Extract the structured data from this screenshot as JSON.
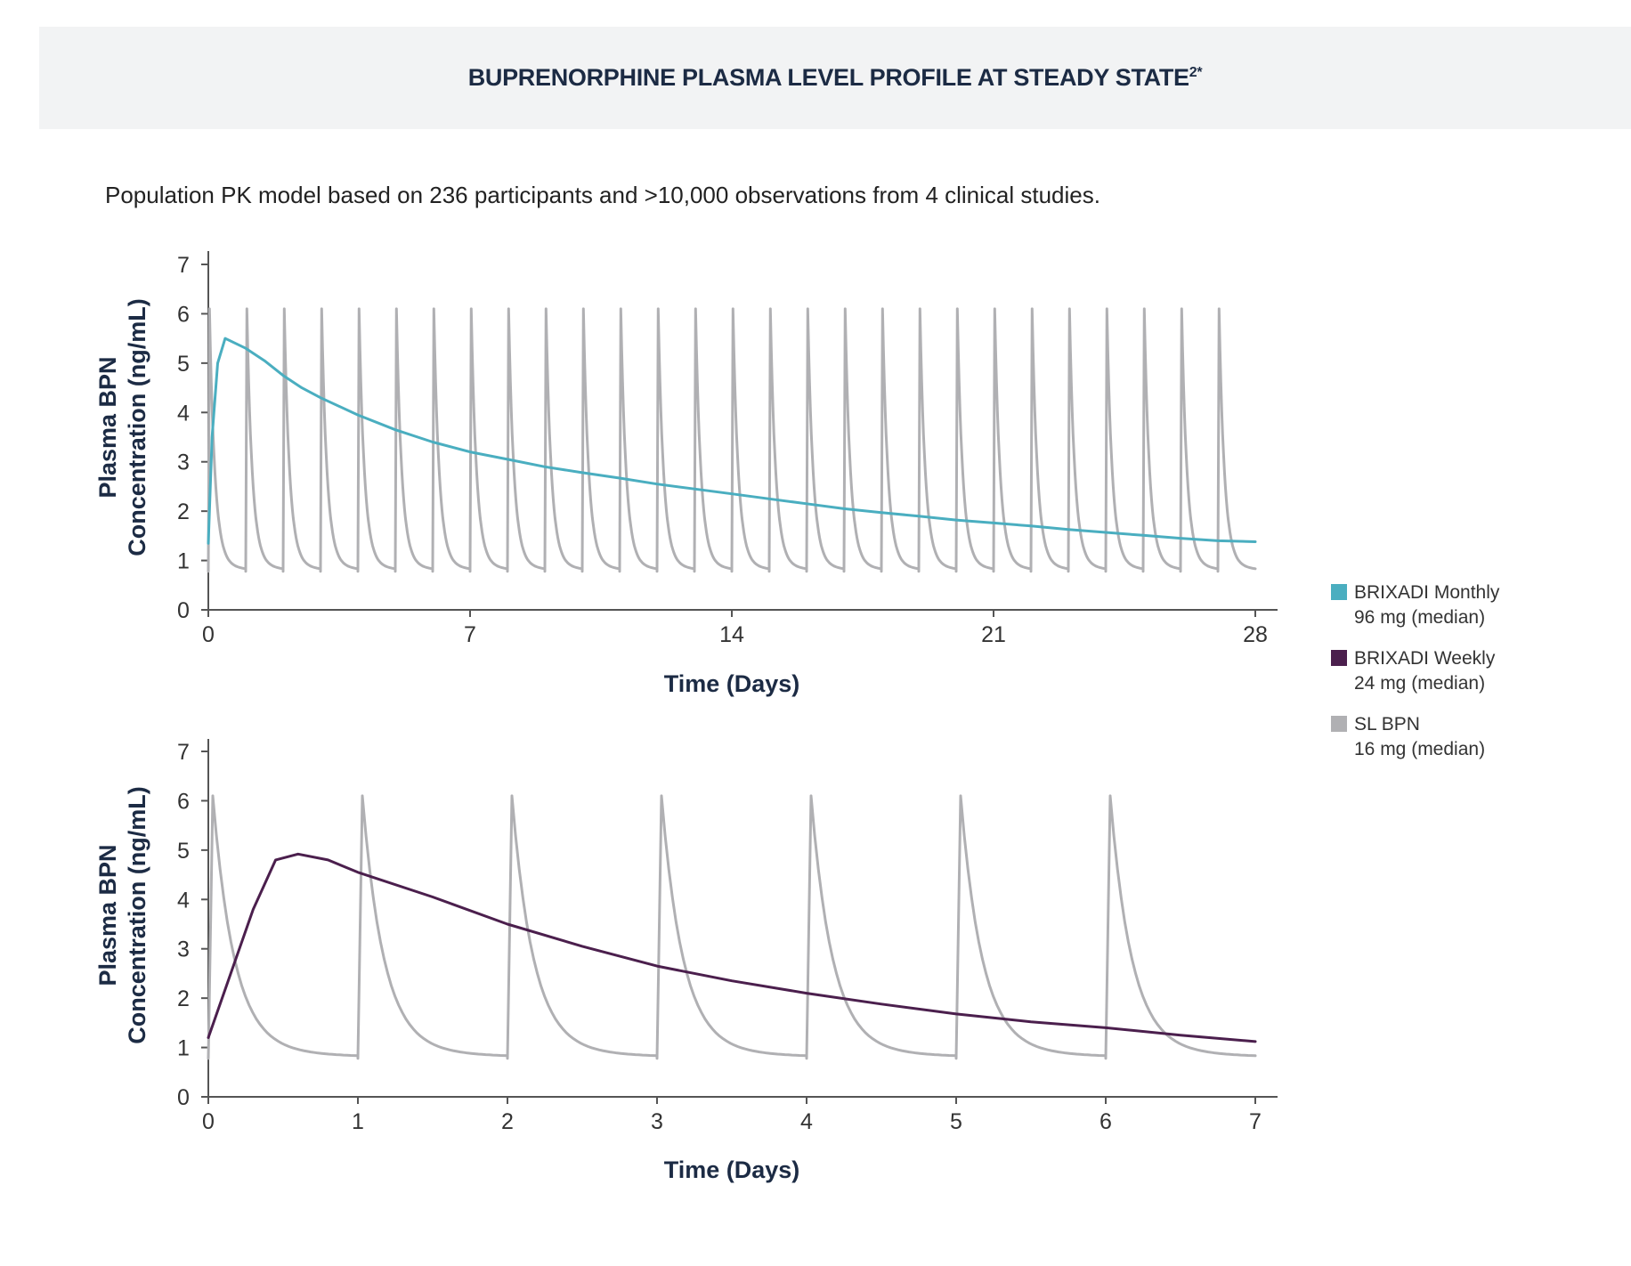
{
  "title": "BUPRENORPHINE PLASMA LEVEL PROFILE AT STEADY STATE",
  "title_sup": "2*",
  "subtitle": "Population PK model based on 236 participants and >10,000 observations from 4 clinical studies.",
  "colors": {
    "monthly": "#4aaec0",
    "weekly": "#4b1f4d",
    "sl": "#b0b0b3",
    "axis": "#555555"
  },
  "legend": [
    {
      "name": "BRIXADI Monthly",
      "sub": "96 mg (median)",
      "color": "#4aaec0"
    },
    {
      "name": "BRIXADI Weekly",
      "sub": "24 mg (median)",
      "color": "#4b1f4d"
    },
    {
      "name": "SL BPN",
      "sub": "16 mg (median)",
      "color": "#b0b0b3"
    }
  ],
  "chart_data": [
    {
      "type": "line",
      "title": "",
      "xlabel": "Time (Days)",
      "ylabel": [
        "Plasma BPN",
        "Concentration (ng/mL)"
      ],
      "xlim": [
        0,
        28
      ],
      "ylim": [
        0,
        7
      ],
      "xticks": [
        0,
        7,
        14,
        21,
        28
      ],
      "yticks": [
        0,
        1,
        2,
        3,
        4,
        5,
        6,
        7
      ],
      "series": [
        {
          "name": "BRIXADI Monthly 96 mg (median)",
          "color": "#4aaec0",
          "x": [
            0,
            0.1,
            0.25,
            0.45,
            1,
            1.5,
            2,
            2.5,
            3,
            4,
            5,
            6,
            7,
            8,
            9,
            10,
            11,
            12,
            13,
            14,
            15,
            16,
            17,
            18,
            19,
            20,
            21,
            22,
            23,
            24,
            25,
            26,
            27,
            28
          ],
          "y": [
            1.35,
            3.5,
            5.0,
            5.5,
            5.3,
            5.05,
            4.75,
            4.5,
            4.3,
            3.95,
            3.65,
            3.4,
            3.2,
            3.05,
            2.9,
            2.78,
            2.67,
            2.55,
            2.45,
            2.35,
            2.25,
            2.15,
            2.05,
            1.97,
            1.9,
            1.82,
            1.76,
            1.7,
            1.63,
            1.57,
            1.51,
            1.45,
            1.4,
            1.38
          ]
        },
        {
          "name": "SL BPN 16 mg (median)",
          "color": "#b0b0b3",
          "pattern": "daily-dose",
          "period_days": 1,
          "n_doses": 28,
          "trough": 0.78,
          "peak": 6.1,
          "decay_rate": 7.0,
          "x": [
            0,
            0.03,
            0.1,
            0.2,
            0.3,
            0.5,
            0.7,
            0.9,
            1.0
          ],
          "y": [
            0.78,
            6.1,
            3.2,
            1.85,
            1.35,
            1.0,
            0.88,
            0.8,
            0.78
          ]
        }
      ]
    },
    {
      "type": "line",
      "title": "",
      "xlabel": "Time (Days)",
      "ylabel": [
        "Plasma BPN",
        "Concentration (ng/mL)"
      ],
      "xlim": [
        0,
        7
      ],
      "ylim": [
        0,
        7
      ],
      "xticks": [
        0,
        1,
        2,
        3,
        4,
        5,
        6,
        7
      ],
      "yticks": [
        0,
        1,
        2,
        3,
        4,
        5,
        6,
        7
      ],
      "series": [
        {
          "name": "BRIXADI Weekly 24 mg (median)",
          "color": "#4b1f4d",
          "x": [
            0,
            0.15,
            0.3,
            0.45,
            0.6,
            0.8,
            1.0,
            1.5,
            2.0,
            2.5,
            3.0,
            3.5,
            4.0,
            4.5,
            5.0,
            5.5,
            6.0,
            6.5,
            7.0
          ],
          "y": [
            1.2,
            2.5,
            3.8,
            4.8,
            4.92,
            4.8,
            4.55,
            4.05,
            3.5,
            3.05,
            2.65,
            2.35,
            2.1,
            1.88,
            1.68,
            1.52,
            1.4,
            1.25,
            1.12
          ]
        },
        {
          "name": "SL BPN 16 mg (median)",
          "color": "#b0b0b3",
          "pattern": "daily-dose",
          "period_days": 1,
          "n_doses": 7,
          "trough": 0.78,
          "peak": 6.1,
          "decay_rate": 7.0,
          "x": [
            0,
            0.03,
            0.1,
            0.2,
            0.3,
            0.5,
            0.7,
            0.9,
            1.0
          ],
          "y": [
            0.78,
            6.1,
            3.2,
            1.85,
            1.35,
            1.0,
            0.88,
            0.8,
            0.78
          ]
        }
      ]
    }
  ]
}
